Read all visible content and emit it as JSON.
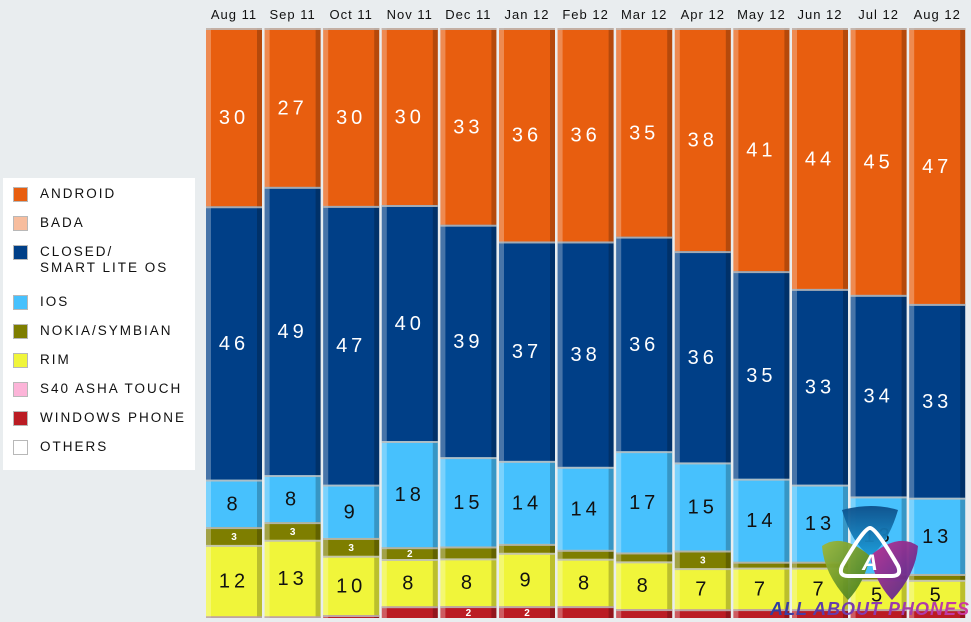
{
  "legend": {
    "items": [
      {
        "label": "ANDROID",
        "color": "#e85e0f"
      },
      {
        "label": "BADA",
        "color": "#f7bd9e"
      },
      {
        "label": "CLOSED/\nSMART LITE OS",
        "color": "#003f87"
      },
      {
        "label": "IOS",
        "color": "#47c1fd"
      },
      {
        "label": "NOKIA/SYMBIAN",
        "color": "#7e7e00"
      },
      {
        "label": "RIM",
        "color": "#f0f53a"
      },
      {
        "label": "S40 ASHA TOUCH",
        "color": "#fcb4d8"
      },
      {
        "label": "WINDOWS PHONE",
        "color": "#bb1c24"
      },
      {
        "label": "OTHERS",
        "color": "#ffffff"
      }
    ]
  },
  "chart_data": {
    "type": "bar",
    "stacked": true,
    "normalized_to": 100,
    "categories": [
      "Aug 11",
      "Sep 11",
      "Oct 11",
      "Nov 11",
      "Dec 11",
      "Jan 12",
      "Feb 12",
      "Mar 12",
      "Apr 12",
      "May 12",
      "Jun 12",
      "Jul 12",
      "Aug 12"
    ],
    "series": [
      {
        "name": "WINDOWS PHONE",
        "color": "#bb1c24",
        "values": [
          0.3,
          0.3,
          0.5,
          2,
          2,
          2,
          2,
          1.5,
          1.5,
          1.5,
          1.5,
          1.5,
          1.5
        ],
        "labels": [
          "",
          "",
          "",
          "",
          "2",
          "2",
          "",
          "",
          "",
          "",
          "",
          "",
          ""
        ]
      },
      {
        "name": "RIM",
        "color": "#f0f53a",
        "values": [
          12,
          13,
          10,
          8,
          8,
          9,
          8,
          8,
          7,
          7,
          7,
          5,
          5
        ],
        "labels": [
          "12",
          "13",
          "10",
          "8",
          "8",
          "9",
          "8",
          "8",
          "7",
          "7",
          "7",
          "5",
          "5"
        ]
      },
      {
        "name": "NOKIA/SYMBIAN",
        "color": "#7e7e00",
        "values": [
          3,
          3,
          3,
          2,
          2,
          1.5,
          1.5,
          1.5,
          3,
          1,
          1,
          1,
          1
        ],
        "labels": [
          "3",
          "3",
          "3",
          "2",
          "",
          "",
          "",
          "",
          "3",
          "",
          "",
          "",
          ""
        ]
      },
      {
        "name": "IOS",
        "color": "#47c1fd",
        "values": [
          8,
          8,
          9,
          18,
          15,
          14,
          14,
          17,
          15,
          14,
          13,
          13,
          13
        ],
        "labels": [
          "8",
          "8",
          "9",
          "18",
          "15",
          "14",
          "14",
          "17",
          "15",
          "14",
          "13",
          "13",
          "13"
        ]
      },
      {
        "name": "CLOSED/SMART LITE OS",
        "color": "#003f87",
        "values": [
          46,
          49,
          47,
          40,
          39,
          37,
          38,
          36,
          36,
          35,
          33,
          34,
          33
        ],
        "labels": [
          "46",
          "49",
          "47",
          "40",
          "39",
          "37",
          "38",
          "36",
          "36",
          "35",
          "33",
          "34",
          "33"
        ]
      },
      {
        "name": "ANDROID",
        "color": "#e85e0f",
        "values": [
          30,
          27,
          30,
          30,
          33,
          36,
          36,
          35,
          38,
          41,
          44,
          45,
          47
        ],
        "labels": [
          "30",
          "27",
          "30",
          "30",
          "33",
          "36",
          "36",
          "35",
          "38",
          "41",
          "44",
          "45",
          "47"
        ]
      }
    ],
    "title": "",
    "xlabel": "",
    "ylabel": "",
    "ylim": [
      0,
      100
    ],
    "grid": false,
    "legend_position": "left"
  },
  "watermark": {
    "text": "ALL ABOUT PHONES",
    "glyph": "A"
  }
}
